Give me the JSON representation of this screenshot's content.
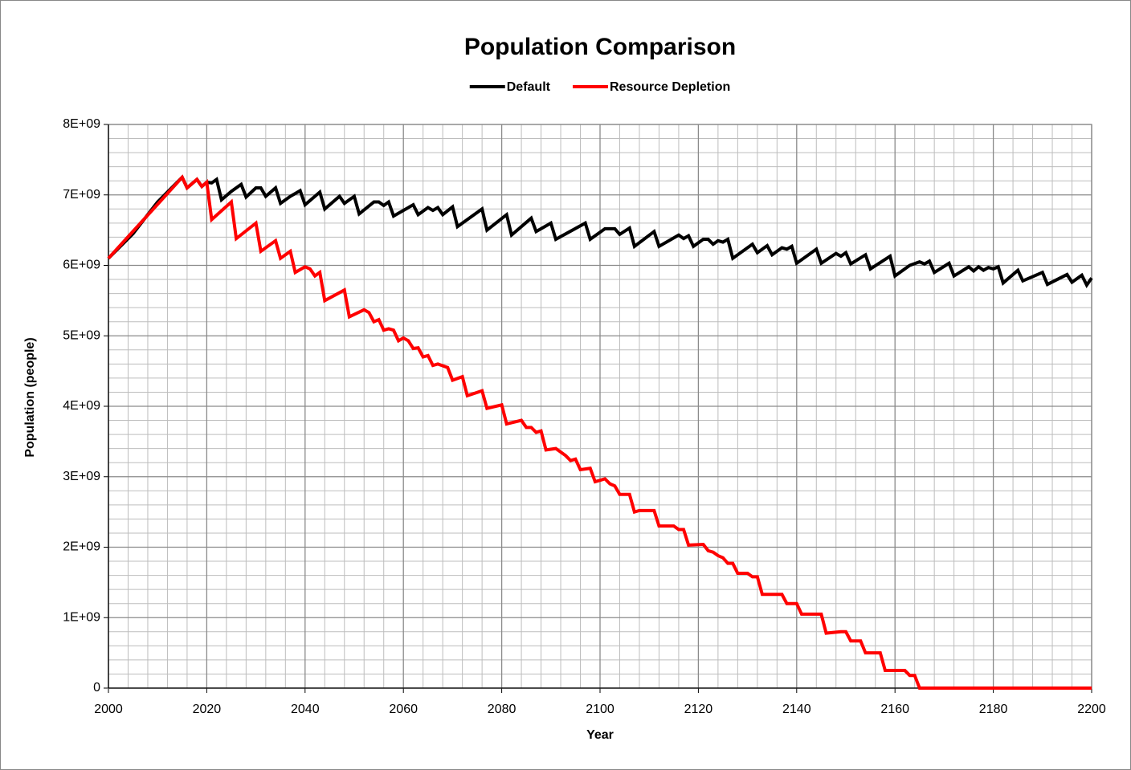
{
  "chart_data": {
    "type": "line",
    "title": "Population Comparison",
    "x_label": "Year",
    "y_label": "Population (people)",
    "xlim": [
      2000,
      2200
    ],
    "ylim": [
      0,
      8000000000.0
    ],
    "xticks": [
      2000,
      2020,
      2040,
      2060,
      2080,
      2100,
      2120,
      2140,
      2160,
      2180,
      2200
    ],
    "yticks": [
      0,
      {
        "value": 1000000000.0,
        "label": "1E+09"
      },
      {
        "value": 2000000000.0,
        "label": "2E+09"
      },
      {
        "value": 3000000000.0,
        "label": "3E+09"
      },
      {
        "value": 4000000000.0,
        "label": "4E+09"
      },
      {
        "value": 5000000000.0,
        "label": "5E+09"
      },
      {
        "value": 6000000000.0,
        "label": "6E+09"
      },
      {
        "value": 7000000000.0,
        "label": "7E+09"
      },
      {
        "value": 8000000000.0,
        "label": "8E+09"
      }
    ],
    "grid": true,
    "legend": "top",
    "series": [
      {
        "name": "Default",
        "color": "#000000",
        "x": [
          2000,
          2005,
          2010,
          2015,
          2016,
          2018,
          2019,
          2020,
          2021,
          2022,
          2023,
          2025,
          2027,
          2028,
          2030,
          2031,
          2032,
          2034,
          2035,
          2037,
          2039,
          2040,
          2043,
          2044,
          2047,
          2048,
          2050,
          2051,
          2054,
          2055,
          2056,
          2057,
          2058,
          2062,
          2063,
          2065,
          2066,
          2067,
          2068,
          2070,
          2071,
          2076,
          2077,
          2081,
          2082,
          2086,
          2087,
          2090,
          2091,
          2097,
          2098,
          2101,
          2103,
          2104,
          2106,
          2107,
          2111,
          2112,
          2116,
          2117,
          2118,
          2119,
          2121,
          2122,
          2123,
          2124,
          2125,
          2126,
          2127,
          2131,
          2132,
          2134,
          2135,
          2137,
          2138,
          2139,
          2140,
          2144,
          2145,
          2148,
          2149,
          2150,
          2151,
          2154,
          2155,
          2159,
          2160,
          2163,
          2165,
          2166,
          2167,
          2168,
          2171,
          2172,
          2175,
          2176,
          2177,
          2178,
          2179,
          2180,
          2181,
          2182,
          2185,
          2186,
          2190,
          2191,
          2195,
          2196,
          2198,
          2199,
          2200
        ],
        "values": [
          6100000000.0,
          6450000000.0,
          6900000000.0,
          7250000000.0,
          7100000000.0,
          7220000000.0,
          7120000000.0,
          7180000000.0,
          7170000000.0,
          7220000000.0,
          6930000000.0,
          7050000000.0,
          7150000000.0,
          6970000000.0,
          7100000000.0,
          7100000000.0,
          6980000000.0,
          7100000000.0,
          6880000000.0,
          6980000000.0,
          7060000000.0,
          6860000000.0,
          7040000000.0,
          6800000000.0,
          6980000000.0,
          6880000000.0,
          6980000000.0,
          6730000000.0,
          6900000000.0,
          6900000000.0,
          6850000000.0,
          6900000000.0,
          6700000000.0,
          6860000000.0,
          6720000000.0,
          6820000000.0,
          6780000000.0,
          6820000000.0,
          6720000000.0,
          6830000000.0,
          6550000000.0,
          6800000000.0,
          6500000000.0,
          6720000000.0,
          6430000000.0,
          6670000000.0,
          6480000000.0,
          6600000000.0,
          6370000000.0,
          6600000000.0,
          6370000000.0,
          6520000000.0,
          6520000000.0,
          6440000000.0,
          6530000000.0,
          6270000000.0,
          6480000000.0,
          6270000000.0,
          6430000000.0,
          6380000000.0,
          6420000000.0,
          6270000000.0,
          6370000000.0,
          6370000000.0,
          6300000000.0,
          6350000000.0,
          6330000000.0,
          6370000000.0,
          6100000000.0,
          6300000000.0,
          6180000000.0,
          6280000000.0,
          6150000000.0,
          6250000000.0,
          6230000000.0,
          6270000000.0,
          6030000000.0,
          6230000000.0,
          6030000000.0,
          6170000000.0,
          6130000000.0,
          6180000000.0,
          6020000000.0,
          6150000000.0,
          5950000000.0,
          6130000000.0,
          5850000000.0,
          6000000000.0,
          6050000000.0,
          6020000000.0,
          6060000000.0,
          5900000000.0,
          6030000000.0,
          5850000000.0,
          5980000000.0,
          5920000000.0,
          5980000000.0,
          5930000000.0,
          5970000000.0,
          5950000000.0,
          5980000000.0,
          5750000000.0,
          5930000000.0,
          5780000000.0,
          5900000000.0,
          5730000000.0,
          5870000000.0,
          5760000000.0,
          5860000000.0,
          5720000000.0,
          5820000000.0
        ]
      },
      {
        "name": "Resource Depletion",
        "color": "#ff0000",
        "x": [
          2000,
          2015,
          2016,
          2018,
          2019,
          2020,
          2021,
          2025,
          2026,
          2030,
          2031,
          2034,
          2035,
          2037,
          2038,
          2040,
          2041,
          2042,
          2043,
          2044,
          2048,
          2049,
          2052,
          2053,
          2054,
          2055,
          2056,
          2057,
          2058,
          2059,
          2060,
          2061,
          2062,
          2063,
          2064,
          2065,
          2066,
          2067,
          2069,
          2070,
          2072,
          2073,
          2076,
          2077,
          2080,
          2081,
          2084,
          2085,
          2086,
          2087,
          2088,
          2089,
          2091,
          2092,
          2093,
          2094,
          2095,
          2096,
          2098,
          2099,
          2100,
          2101,
          2102,
          2103,
          2104,
          2106,
          2107,
          2108,
          2111,
          2112,
          2115,
          2116,
          2117,
          2118,
          2121,
          2122,
          2123,
          2124,
          2125,
          2126,
          2127,
          2128,
          2130,
          2131,
          2132,
          2133,
          2137,
          2138,
          2140,
          2141,
          2145,
          2146,
          2149,
          2150,
          2151,
          2153,
          2154,
          2157,
          2158,
          2162,
          2163,
          2164,
          2165,
          2200
        ],
        "values": [
          6100000000.0,
          7250000000.0,
          7100000000.0,
          7220000000.0,
          7120000000.0,
          7180000000.0,
          6650000000.0,
          6900000000.0,
          6380000000.0,
          6600000000.0,
          6200000000.0,
          6350000000.0,
          6100000000.0,
          6200000000.0,
          5900000000.0,
          5980000000.0,
          5950000000.0,
          5850000000.0,
          5900000000.0,
          5500000000.0,
          5650000000.0,
          5270000000.0,
          5370000000.0,
          5330000000.0,
          5200000000.0,
          5230000000.0,
          5080000000.0,
          5100000000.0,
          5080000000.0,
          4930000000.0,
          4970000000.0,
          4930000000.0,
          4820000000.0,
          4830000000.0,
          4700000000.0,
          4720000000.0,
          4580000000.0,
          4600000000.0,
          4550000000.0,
          4370000000.0,
          4420000000.0,
          4150000000.0,
          4220000000.0,
          3970000000.0,
          4020000000.0,
          3750000000.0,
          3800000000.0,
          3700000000.0,
          3700000000.0,
          3630000000.0,
          3650000000.0,
          3380000000.0,
          3400000000.0,
          3350000000.0,
          3300000000.0,
          3230000000.0,
          3250000000.0,
          3100000000.0,
          3120000000.0,
          2930000000.0,
          2950000000.0,
          2970000000.0,
          2900000000.0,
          2870000000.0,
          2750000000.0,
          2750000000.0,
          2500000000.0,
          2520000000.0,
          2520000000.0,
          2300000000.0,
          2300000000.0,
          2250000000.0,
          2250000000.0,
          2030000000.0,
          2040000000.0,
          1950000000.0,
          1930000000.0,
          1880000000.0,
          1850000000.0,
          1770000000.0,
          1770000000.0,
          1630000000.0,
          1630000000.0,
          1580000000.0,
          1580000000.0,
          1330000000.0,
          1330000000.0,
          1200000000.0,
          1200000000.0,
          1050000000.0,
          1050000000.0,
          780000000.0,
          800000000.0,
          800000000.0,
          670000000.0,
          670000000.0,
          500000000.0,
          500000000.0,
          250000000.0,
          250000000.0,
          180000000.0,
          180000000.0,
          0,
          0
        ]
      }
    ]
  }
}
